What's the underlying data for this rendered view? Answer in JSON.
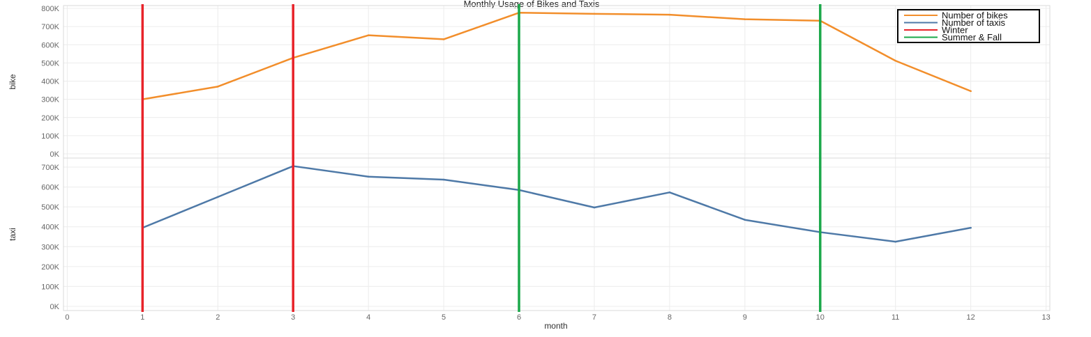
{
  "chart_data": {
    "type": "line",
    "title": "Monthly Usage of Bikes and Taxis",
    "xlabel": "month",
    "x_ticks": [
      0,
      1,
      2,
      3,
      4,
      5,
      6,
      7,
      8,
      9,
      10,
      11,
      12,
      13
    ],
    "xlim": [
      -0.05,
      13.05
    ],
    "panels": [
      {
        "ylabel": "bike",
        "ylim": [
          0,
          800000
        ],
        "y_ticks": [
          0,
          100000,
          200000,
          300000,
          400000,
          500000,
          600000,
          700000,
          800000
        ],
        "y_tick_labels": [
          "0K",
          "100K",
          "200K",
          "300K",
          "400K",
          "500K",
          "600K",
          "700K",
          "800K"
        ],
        "series": [
          {
            "name": "Number of bikes",
            "color": "#f28e2b",
            "x": [
              1,
              2,
              3,
              4,
              5,
              6,
              7,
              8,
              9,
              10,
              11,
              12
            ],
            "values": [
              300000,
              370000,
              528000,
              652000,
              630000,
              776000,
              770000,
              765000,
              740000,
              732000,
              512000,
              345000
            ]
          }
        ]
      },
      {
        "ylabel": "taxi",
        "ylim": [
          0,
          700000
        ],
        "y_ticks": [
          0,
          100000,
          200000,
          300000,
          400000,
          500000,
          600000,
          700000
        ],
        "y_tick_labels": [
          "0K",
          "100K",
          "200K",
          "300K",
          "400K",
          "500K",
          "600K",
          "700K"
        ],
        "series": [
          {
            "name": "Number of taxis",
            "color": "#4e79a7",
            "x": [
              1,
              2,
              3,
              4,
              5,
              6,
              7,
              8,
              9,
              10,
              11,
              12
            ],
            "values": [
              395000,
              550000,
              705000,
              652000,
              637000,
              585000,
              497000,
              573000,
              435000,
              373000,
              325000,
              395000
            ]
          }
        ]
      }
    ],
    "reference_lines": [
      {
        "name": "Winter",
        "color": "#e8232a",
        "x": [
          1,
          3
        ]
      },
      {
        "name": "Summer & Fall",
        "color": "#1ba84a",
        "x": [
          6,
          10
        ]
      }
    ],
    "legend": {
      "placement": "top-right",
      "entries": [
        {
          "label": "Number of bikes",
          "color": "#f28e2b"
        },
        {
          "label": "Number of taxis",
          "color": "#4e79a7"
        },
        {
          "label": "Winter",
          "color": "#e8232a"
        },
        {
          "label": "Summer & Fall",
          "color": "#1ba84a"
        }
      ]
    },
    "grid": true
  }
}
